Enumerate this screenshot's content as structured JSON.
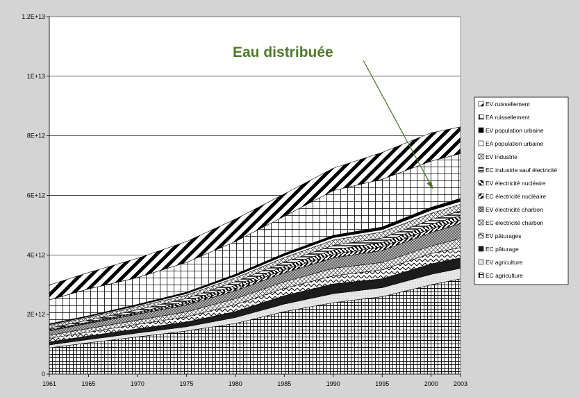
{
  "chart_data": {
    "type": "area",
    "stacked": true,
    "x": [
      1961,
      1965,
      1970,
      1975,
      1980,
      1985,
      1990,
      1995,
      2000,
      2003
    ],
    "x_ticks": [
      "1961",
      "1965",
      "1970",
      "1975",
      "1980",
      "1985",
      "1990",
      "1995",
      "2000",
      "2003"
    ],
    "y_ticks": [
      "0",
      "2E+12",
      "4E+12",
      "6E+12",
      "8E+12",
      "1E+13",
      "1,2E+13"
    ],
    "ylim": [
      0,
      12000000000000
    ],
    "grid": "horizontal",
    "legend_position": "right",
    "annotation": "Eau distribuée",
    "series": [
      {
        "name": "EC agriculture",
        "values": [
          880000000000.0,
          1050000000000.0,
          1250000000000.0,
          1450000000000.0,
          1700000000000.0,
          2100000000000.0,
          2400000000000.0,
          2600000000000.0,
          3000000000000.0,
          3200000000000.0
        ]
      },
      {
        "name": "EV agriculture",
        "values": [
          100000000000.0,
          110000000000.0,
          130000000000.0,
          140000000000.0,
          200000000000.0,
          250000000000.0,
          300000000000.0,
          300000000000.0,
          350000000000.0,
          350000000000.0
        ]
      },
      {
        "name": "EC pâturage",
        "values": [
          100000000000.0,
          120000000000.0,
          140000000000.0,
          160000000000.0,
          200000000000.0,
          280000000000.0,
          330000000000.0,
          300000000000.0,
          350000000000.0,
          350000000000.0
        ]
      },
      {
        "name": "EV pâturages",
        "values": [
          120000000000.0,
          130000000000.0,
          150000000000.0,
          170000000000.0,
          230000000000.0,
          250000000000.0,
          270000000000.0,
          300000000000.0,
          350000000000.0,
          350000000000.0
        ]
      },
      {
        "name": "EC électricité charbon",
        "values": [
          100000000000.0,
          120000000000.0,
          140000000000.0,
          170000000000.0,
          200000000000.0,
          220000000000.0,
          250000000000.0,
          250000000000.0,
          250000000000.0,
          300000000000.0
        ]
      },
      {
        "name": "EV électricité charbon",
        "values": [
          150000000000.0,
          170000000000.0,
          200000000000.0,
          230000000000.0,
          270000000000.0,
          300000000000.0,
          350000000000.0,
          400000000000.0,
          450000000000.0,
          500000000000.0
        ]
      },
      {
        "name": "EC électricité nucléaire",
        "values": [
          20000000000.0,
          20000000000.0,
          30000000000.0,
          50000000000.0,
          80000000000.0,
          100000000000.0,
          120000000000.0,
          120000000000.0,
          130000000000.0,
          130000000000.0
        ]
      },
      {
        "name": "EV électricité nucléaire",
        "values": [
          30000000000.0,
          30000000000.0,
          40000000000.0,
          70000000000.0,
          100000000000.0,
          120000000000.0,
          150000000000.0,
          150000000000.0,
          150000000000.0,
          150000000000.0
        ]
      },
      {
        "name": "EC industrie sauf électricité",
        "values": [
          50000000000.0,
          60000000000.0,
          80000000000.0,
          100000000000.0,
          120000000000.0,
          140000000000.0,
          150000000000.0,
          150000000000.0,
          150000000000.0,
          150000000000.0
        ]
      },
      {
        "name": "EV industrie",
        "values": [
          80000000000.0,
          90000000000.0,
          100000000000.0,
          110000000000.0,
          130000000000.0,
          150000000000.0,
          180000000000.0,
          200000000000.0,
          220000000000.0,
          220000000000.0
        ]
      },
      {
        "name": "EA population urbaine",
        "values": [
          30000000000.0,
          30000000000.0,
          40000000000.0,
          50000000000.0,
          60000000000.0,
          70000000000.0,
          80000000000.0,
          80000000000.0,
          100000000000.0,
          100000000000.0
        ]
      },
      {
        "name": "EV population urbaine",
        "values": [
          30000000000.0,
          30000000000.0,
          40000000000.0,
          50000000000.0,
          60000000000.0,
          70000000000.0,
          80000000000.0,
          90000000000.0,
          100000000000.0,
          100000000000.0
        ]
      },
      {
        "name": "EA ruissellement",
        "values": [
          800000000000.0,
          900000000000.0,
          900000000000.0,
          1000000000000.0,
          1100000000000.0,
          1250000000000.0,
          1500000000000.0,
          1600000000000.0,
          1550000000000.0,
          1500000000000.0
        ]
      },
      {
        "name": "EV ruissellement",
        "values": [
          500000000000.0,
          550000000000.0,
          650000000000.0,
          700000000000.0,
          750000000000.0,
          750000000000.0,
          750000000000.0,
          900000000000.0,
          950000000000.0,
          900000000000.0
        ]
      }
    ]
  }
}
